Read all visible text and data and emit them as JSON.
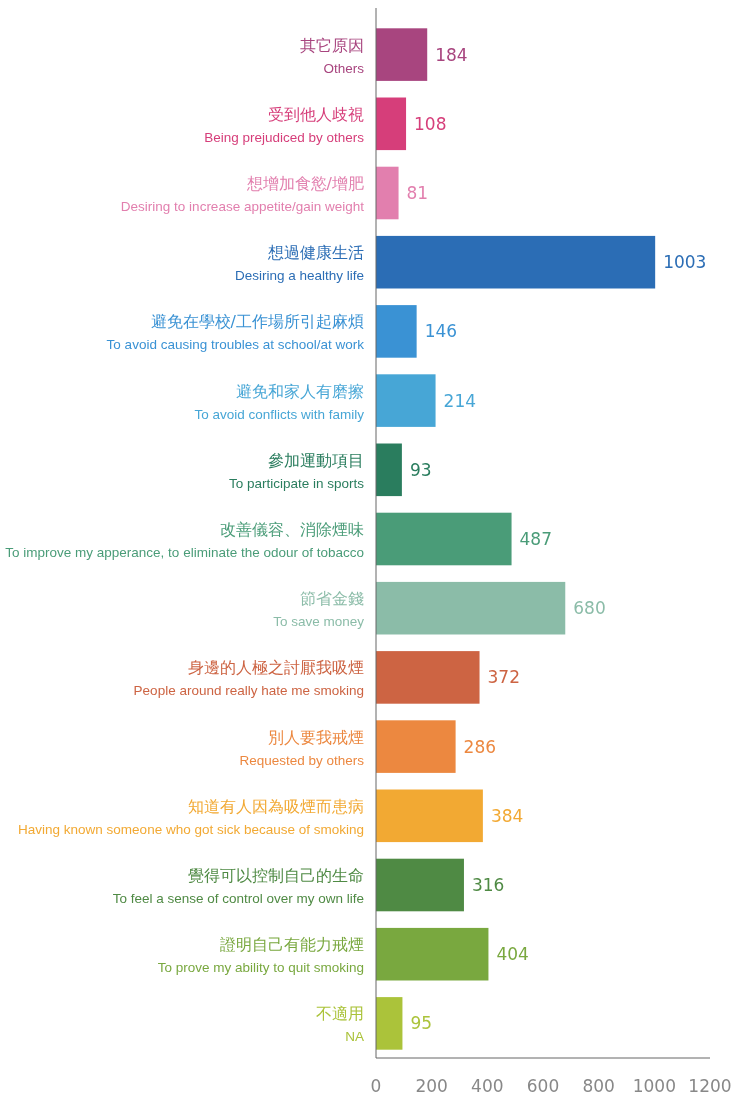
{
  "chart_data": {
    "type": "bar",
    "orientation": "horizontal",
    "categories": [
      "其它原因\nOthers",
      "受到他人歧視\nBeing prejudiced by others",
      "想增加食慾/增肥\nDesiring to increase appetite/gain weight",
      "想過健康生活\nDesiring a healthy life",
      "避免在學校/工作場所引起麻煩\nTo avoid causing troubles at school/at work",
      "避免和家人有磨擦\nTo avoid conflicts with family",
      "參加運動項目\nTo participate in sports",
      "改善儀容、消除煙味\nTo improve my apperance, to eliminate the odour of tobacco",
      "節省金錢\nTo save money",
      "身邊的人極之討厭我吸煙\nPeople around really hate me smoking",
      "別人要我戒煙\nRequested by others",
      "知道有人因為吸煙而患病\nHaving known someone who got sick because of smoking",
      "覺得可以控制自己的生命\nTo feel a sense of control over my own life",
      "證明自己有能力戒煙\nTo prove my ability to quit smoking",
      "不適用\nNA"
    ],
    "values": [
      184,
      108,
      81,
      1003,
      146,
      214,
      93,
      487,
      680,
      372,
      286,
      384,
      316,
      404,
      95
    ],
    "colors": [
      "#a8457f",
      "#d63e7a",
      "#e27fae",
      "#2b6db5",
      "#3a92d4",
      "#47a6d6",
      "#2a7d5e",
      "#4a9c78",
      "#8bbca8",
      "#cd6443",
      "#ec8840",
      "#f2a933",
      "#4f8a44",
      "#79a83f",
      "#abc33a"
    ],
    "xlim": [
      0,
      1200
    ],
    "xticks": [
      0,
      200,
      400,
      600,
      800,
      1000,
      1200
    ],
    "data_labels": true
  }
}
